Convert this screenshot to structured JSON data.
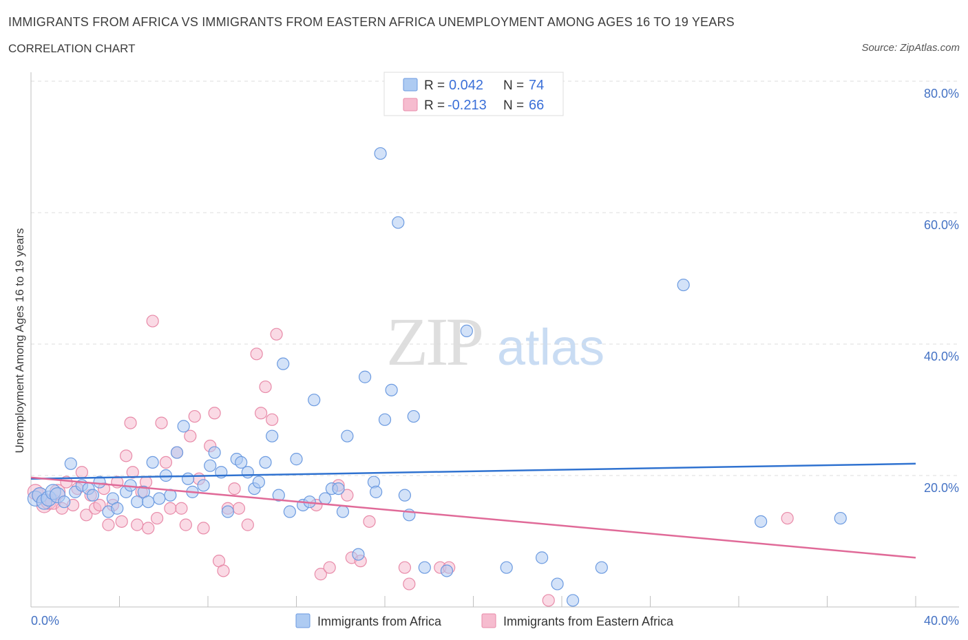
{
  "title": "IMMIGRANTS FROM AFRICA VS IMMIGRANTS FROM EASTERN AFRICA UNEMPLOYMENT AMONG AGES 16 TO 19 YEARS",
  "subtitle": "CORRELATION CHART",
  "source": "Source: ZipAtlas.com",
  "watermark": {
    "zip": "ZIP",
    "atlas": "atlas"
  },
  "colors": {
    "blue_fill": "#aecbf2",
    "blue_stroke": "#6b9ae0",
    "blue_line": "#2f72d0",
    "pink_fill": "#f6bccf",
    "pink_stroke": "#e88aa8",
    "pink_line": "#e06a98",
    "grid": "#dcdcdc",
    "tick_text": "#4472c4"
  },
  "chart_data": {
    "type": "scatter",
    "ylabel": "Unemployment Among Ages 16 to 19 years",
    "xlim": [
      0,
      40
    ],
    "ylim": [
      0,
      80
    ],
    "x_tick_labels": [
      "0.0%",
      "40.0%"
    ],
    "y_ticks": [
      20,
      40,
      60,
      80
    ],
    "y_tick_labels": [
      "20.0%",
      "40.0%",
      "60.0%",
      "80.0%"
    ],
    "grid": "horizontal dashed",
    "legend_position": "top-center",
    "stats": [
      {
        "r_label": "R =",
        "r": "0.042",
        "n_label": "N =",
        "n": "74"
      },
      {
        "r_label": "R =",
        "r": "-0.213",
        "n_label": "N =",
        "n": "66"
      }
    ],
    "series": [
      {
        "name": "Immigrants from Africa",
        "color": "blue",
        "trend": [
          [
            0,
            19.5
          ],
          [
            40,
            21.8
          ]
        ],
        "points": [
          [
            0.2,
            16.5
          ],
          [
            0.4,
            17
          ],
          [
            0.6,
            16
          ],
          [
            0.8,
            16.5
          ],
          [
            1.0,
            17.5
          ],
          [
            1.2,
            17
          ],
          [
            1.5,
            16
          ],
          [
            1.8,
            21.8
          ],
          [
            2.0,
            17.5
          ],
          [
            2.3,
            18.5
          ],
          [
            2.6,
            18
          ],
          [
            2.8,
            17
          ],
          [
            3.1,
            19
          ],
          [
            3.5,
            14.5
          ],
          [
            3.7,
            16.5
          ],
          [
            3.9,
            15
          ],
          [
            4.3,
            17.5
          ],
          [
            4.5,
            18.5
          ],
          [
            4.8,
            16
          ],
          [
            5.1,
            17.5
          ],
          [
            5.3,
            16
          ],
          [
            5.5,
            22
          ],
          [
            5.8,
            16.5
          ],
          [
            6.1,
            20
          ],
          [
            6.3,
            17
          ],
          [
            6.6,
            23.5
          ],
          [
            6.9,
            27.5
          ],
          [
            7.1,
            19.5
          ],
          [
            7.3,
            17.5
          ],
          [
            7.8,
            18.5
          ],
          [
            8.1,
            21.5
          ],
          [
            8.3,
            23.5
          ],
          [
            8.6,
            20.5
          ],
          [
            8.9,
            14.5
          ],
          [
            9.3,
            22.5
          ],
          [
            9.5,
            22
          ],
          [
            9.8,
            20.5
          ],
          [
            10.1,
            18
          ],
          [
            10.3,
            19
          ],
          [
            10.6,
            22
          ],
          [
            10.9,
            26
          ],
          [
            11.2,
            17
          ],
          [
            11.4,
            37
          ],
          [
            11.7,
            14.5
          ],
          [
            12.0,
            22.5
          ],
          [
            12.3,
            15.5
          ],
          [
            12.6,
            16
          ],
          [
            12.8,
            31.5
          ],
          [
            13.3,
            16.5
          ],
          [
            13.6,
            18
          ],
          [
            13.9,
            18
          ],
          [
            14.1,
            14.5
          ],
          [
            14.3,
            26
          ],
          [
            14.8,
            8
          ],
          [
            15.1,
            35
          ],
          [
            15.5,
            19
          ],
          [
            15.6,
            17.5
          ],
          [
            15.8,
            69
          ],
          [
            16.0,
            28.5
          ],
          [
            16.3,
            33
          ],
          [
            16.6,
            58.5
          ],
          [
            16.9,
            17
          ],
          [
            17.1,
            14
          ],
          [
            17.3,
            29
          ],
          [
            17.8,
            6
          ],
          [
            18.8,
            5.5
          ],
          [
            19.7,
            42
          ],
          [
            21.5,
            6
          ],
          [
            23.1,
            7.5
          ],
          [
            23.8,
            3.5
          ],
          [
            24.5,
            1
          ],
          [
            25.8,
            6
          ],
          [
            29.5,
            49
          ],
          [
            33.0,
            13
          ],
          [
            36.6,
            13.5
          ]
        ]
      },
      {
        "name": "Immigrants from Eastern Africa",
        "color": "pink",
        "trend": [
          [
            0,
            19.7
          ],
          [
            40,
            7.5
          ]
        ],
        "points": [
          [
            0.2,
            17.5
          ],
          [
            0.4,
            17
          ],
          [
            0.6,
            15.5
          ],
          [
            0.8,
            16
          ],
          [
            1.0,
            16
          ],
          [
            1.2,
            17.5
          ],
          [
            1.4,
            15
          ],
          [
            1.6,
            19
          ],
          [
            1.9,
            15.5
          ],
          [
            2.1,
            18
          ],
          [
            2.3,
            20.5
          ],
          [
            2.5,
            14
          ],
          [
            2.7,
            17
          ],
          [
            2.9,
            15
          ],
          [
            3.1,
            15.5
          ],
          [
            3.3,
            18
          ],
          [
            3.5,
            12.5
          ],
          [
            3.7,
            15.5
          ],
          [
            3.9,
            19
          ],
          [
            4.1,
            13
          ],
          [
            4.3,
            23
          ],
          [
            4.5,
            28
          ],
          [
            4.6,
            20.5
          ],
          [
            4.8,
            12.5
          ],
          [
            5.0,
            17.5
          ],
          [
            5.2,
            19
          ],
          [
            5.3,
            12
          ],
          [
            5.5,
            43.5
          ],
          [
            5.7,
            13.5
          ],
          [
            5.9,
            28
          ],
          [
            6.1,
            22
          ],
          [
            6.3,
            15
          ],
          [
            6.6,
            23.5
          ],
          [
            6.8,
            15
          ],
          [
            7.0,
            12.5
          ],
          [
            7.2,
            26
          ],
          [
            7.4,
            29
          ],
          [
            7.6,
            19.5
          ],
          [
            7.8,
            12
          ],
          [
            8.1,
            24.5
          ],
          [
            8.3,
            29.5
          ],
          [
            8.5,
            7
          ],
          [
            8.7,
            5.5
          ],
          [
            8.9,
            15
          ],
          [
            9.2,
            18
          ],
          [
            9.4,
            15
          ],
          [
            9.8,
            12.5
          ],
          [
            10.2,
            38.5
          ],
          [
            10.4,
            29.5
          ],
          [
            10.6,
            33.5
          ],
          [
            10.9,
            28.5
          ],
          [
            11.1,
            41.5
          ],
          [
            12.9,
            15.5
          ],
          [
            13.1,
            5
          ],
          [
            13.5,
            6
          ],
          [
            13.9,
            18.5
          ],
          [
            14.3,
            17
          ],
          [
            14.5,
            7.5
          ],
          [
            14.9,
            7
          ],
          [
            15.3,
            13
          ],
          [
            16.9,
            6
          ],
          [
            17.1,
            3.5
          ],
          [
            18.5,
            6
          ],
          [
            18.9,
            6
          ],
          [
            23.4,
            1
          ],
          [
            34.2,
            13.5
          ]
        ]
      }
    ]
  }
}
